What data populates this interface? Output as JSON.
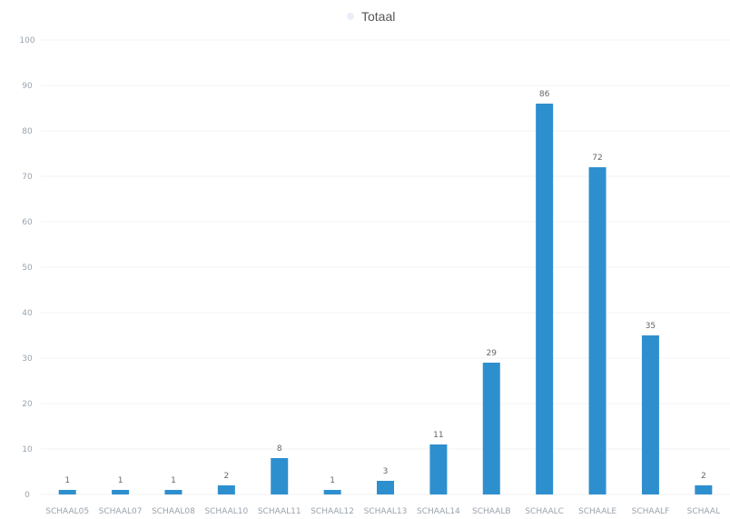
{
  "chart_data": {
    "type": "bar",
    "title": "",
    "legend": [
      "Totaal"
    ],
    "legend_placement": "top-center",
    "categories": [
      "SCHAAL05",
      "SCHAAL07",
      "SCHAAL08",
      "SCHAAL10",
      "SCHAAL11",
      "SCHAAL12",
      "SCHAAL13",
      "SCHAAL14",
      "SCHAALB",
      "SCHAALC",
      "SCHAALE",
      "SCHAALF",
      "SCHAAL"
    ],
    "series": [
      {
        "name": "Totaal",
        "values": [
          1,
          1,
          1,
          2,
          8,
          1,
          3,
          11,
          29,
          86,
          72,
          35,
          2
        ],
        "color": "#2e8fcf"
      }
    ],
    "data_labels": [
      "1",
      "1",
      "1",
      "2",
      "8",
      "1",
      "3",
      "11",
      "29",
      "86",
      "72",
      "35",
      "2"
    ],
    "y_ticks": [
      0,
      10,
      20,
      30,
      40,
      50,
      60,
      70,
      80,
      90,
      100
    ],
    "ylim": [
      0,
      100
    ],
    "xlabel": "",
    "ylabel": "",
    "grid": false
  }
}
